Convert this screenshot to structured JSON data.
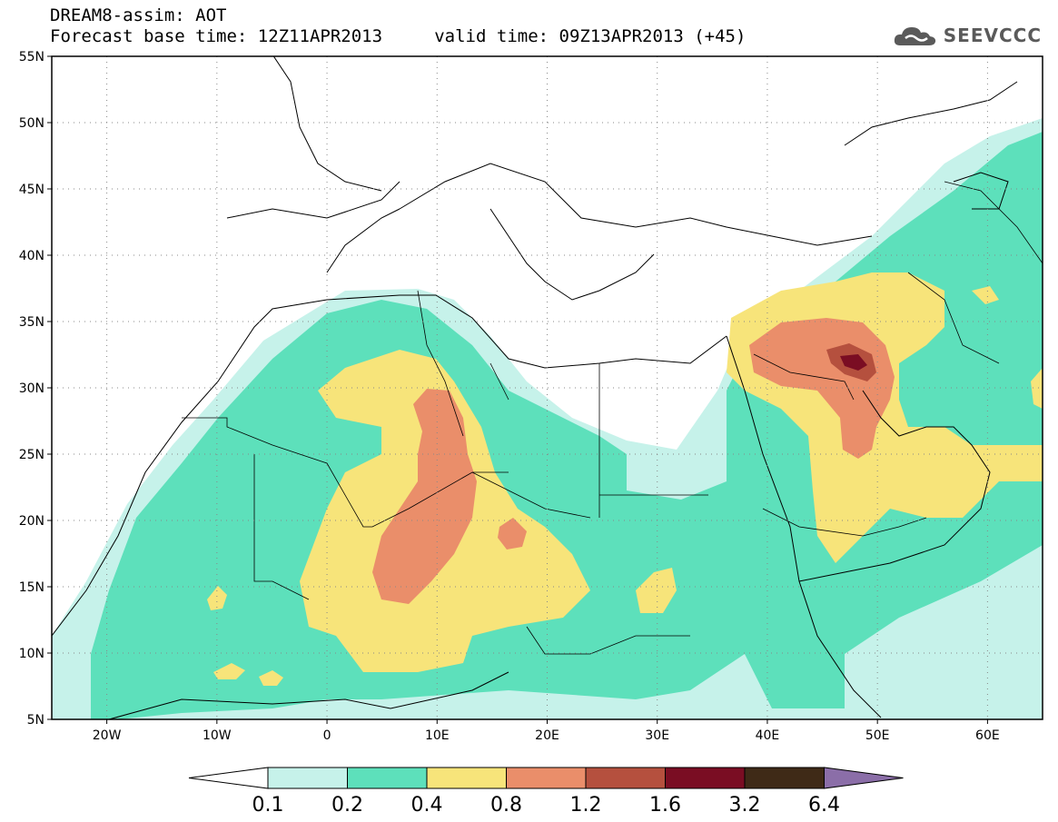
{
  "header": {
    "line1": "DREAM8-assim: AOT",
    "line2": "Forecast base time: 12Z11APR2013     valid time: 09Z13APR2013 (+45)"
  },
  "logo": {
    "text": "SEEVCCC",
    "icon": "cloud-icon"
  },
  "map": {
    "lon_range": [
      -25,
      65
    ],
    "lat_range": [
      5,
      55
    ],
    "lat_ticks": [
      "55N",
      "50N",
      "45N",
      "40N",
      "35N",
      "30N",
      "25N",
      "20N",
      "15N",
      "10N",
      "5N"
    ],
    "lon_ticks": [
      "20W",
      "10W",
      "0",
      "10E",
      "20E",
      "30E",
      "40E",
      "50E",
      "60E"
    ],
    "gridlines": "dotted",
    "variable": "AOT"
  },
  "colorbar": {
    "labels": [
      "0.1",
      "0.2",
      "0.4",
      "0.8",
      "1.2",
      "1.6",
      "3.2",
      "6.4"
    ],
    "colors": [
      "#ffffff",
      "#c6f2ea",
      "#5de0bb",
      "#f7e47a",
      "#ea8e6a",
      "#b5503e",
      "#7a0d23",
      "#3f2a17",
      "#8b6ea8"
    ],
    "extend": "both"
  }
}
